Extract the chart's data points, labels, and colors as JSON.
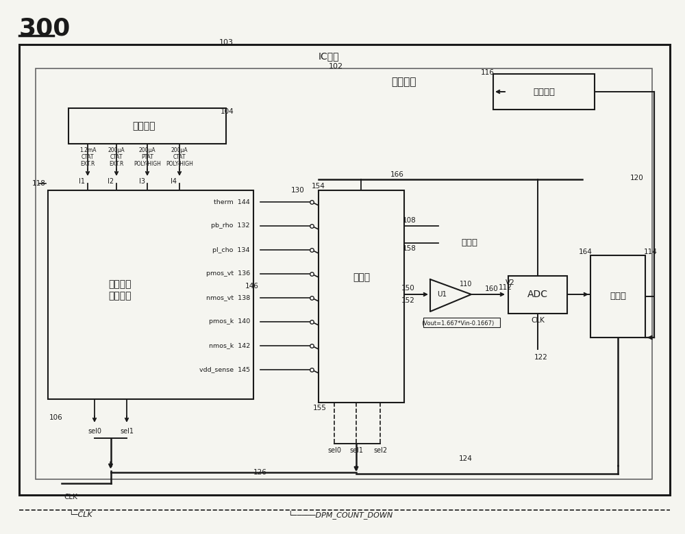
{
  "fig_width": 10.0,
  "fig_height": 7.8,
  "bg_color": "#f5f5f0",
  "line_color": "#1a1a1a",
  "title": "300",
  "text_IC": "IC芯片",
  "text_zc": "制程监控",
  "text_bias": "偏压电路",
  "text_opcirc": "操作电路",
  "text_mux": "多工器",
  "text_amp": "放大器",
  "text_ctrl": "控制器",
  "text_sense1": "制程监控",
  "text_sense2": "感测电路",
  "text_ADC": "ADC",
  "text_amp_eq": "(Vout=1.667*Vin-0.1667)",
  "text_clk_bot": "└─CLK",
  "text_dpm_bot": "└─────DPM_COUNT_DOWN",
  "channels": [
    "therm  144",
    "pb_rho  132",
    "pl_cho  134",
    "pmos_vt  136",
    "nmos_vt  138",
    "pmos_k  140",
    "nmos_k  142",
    "vdd_sense  145"
  ]
}
